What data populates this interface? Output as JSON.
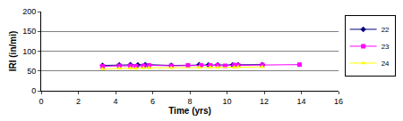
{
  "chart_data": {
    "type": "line",
    "x_label": "Time (yrs)",
    "y_label": "IRI (in/mi)",
    "xlim": [
      0,
      16
    ],
    "xticks": [
      0,
      2,
      4,
      6,
      8,
      10,
      12,
      14,
      16
    ],
    "ylim": [
      0,
      200
    ],
    "yticks": [
      0,
      50,
      100,
      150,
      200
    ],
    "grid": true,
    "legend": "right",
    "series": [
      {
        "name": "22",
        "color": "#000080",
        "marker": "diamond",
        "line_style": "solid",
        "x": [
          3.3,
          4.2,
          4.8,
          5.2,
          5.6,
          7.0,
          8.5,
          9.0,
          9.5,
          10.3,
          10.6,
          11.9
        ],
        "values": [
          64,
          65,
          66,
          65,
          66,
          64,
          66,
          65,
          65,
          65,
          65,
          66
        ]
      },
      {
        "name": "23",
        "color": "#ff00ff",
        "marker": "square",
        "line_style": "solid",
        "x": [
          3.3,
          4.2,
          4.8,
          5.1,
          5.5,
          5.8,
          7.0,
          7.9,
          8.6,
          9.1,
          9.5,
          9.9,
          10.4,
          10.6,
          11.9,
          13.9
        ],
        "values": [
          62,
          63,
          63,
          62,
          63,
          64,
          63,
          64,
          64,
          64,
          64,
          63,
          65,
          64,
          65,
          66
        ]
      },
      {
        "name": "24",
        "color": "#ffff00",
        "marker": "triangle-up",
        "line_style": "solid",
        "x": [
          3.3,
          4.2,
          4.8,
          5.1,
          5.5,
          5.8,
          7.0,
          8.5,
          9.1,
          9.5,
          10.4,
          10.6,
          11.9
        ],
        "values": [
          55,
          57,
          57,
          56,
          58,
          58,
          58,
          59,
          59,
          59,
          59,
          60,
          60
        ]
      }
    ]
  }
}
